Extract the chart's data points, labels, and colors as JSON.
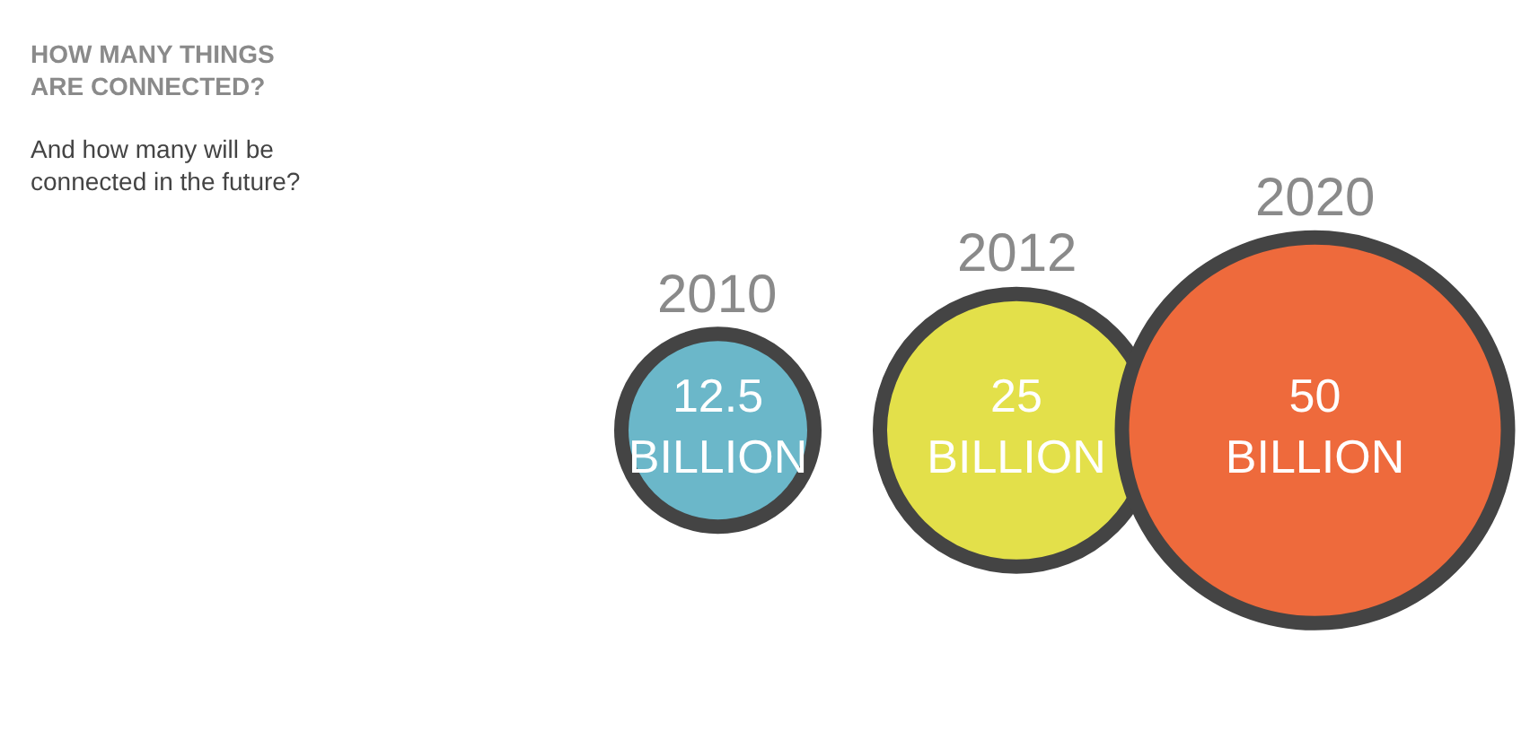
{
  "chart_data": {
    "type": "other",
    "title": "HOW MANY THINGS\nARE CONNECTED?",
    "subtitle": "And how many will be\nconnected in the future?",
    "categories": [
      "2010",
      "2012",
      "2020"
    ],
    "values": [
      12.5,
      25,
      50
    ],
    "value_labels": [
      "12.5\nBILLION",
      "25\nBILLION",
      "50\nBILLION"
    ],
    "colors": [
      "#6bb7c9",
      "#e3e04a",
      "#ee6a3c"
    ]
  }
}
